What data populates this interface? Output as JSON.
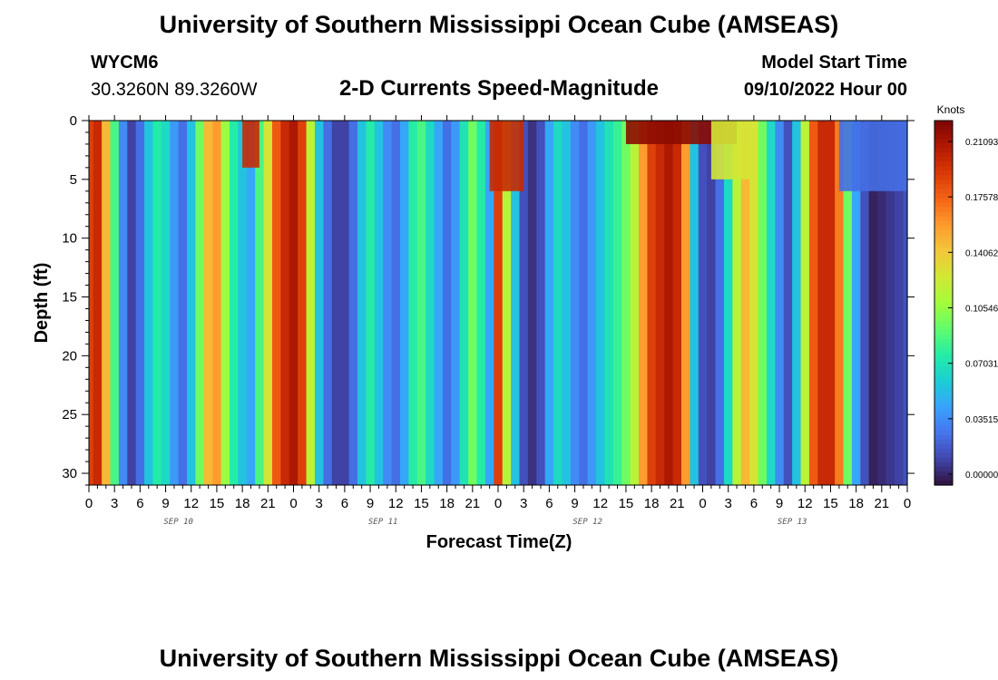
{
  "page": {
    "title": "University of Southern Mississippi Ocean Cube (AMSEAS)",
    "footer_title": "University of Southern Mississippi Ocean Cube (AMSEAS)",
    "station_id": "WYCM6",
    "station_coords": "30.3260N  89.3260W",
    "model_start_label": "Model Start Time",
    "model_start_value": "09/10/2022 Hour 00"
  },
  "chart_data": {
    "type": "heatmap",
    "title": "2-D Currents Speed-Magnitude",
    "xlabel": "Forecast Time(Z)",
    "ylabel": "Depth (ft)",
    "x_tick_labels": [
      "0",
      "3",
      "6",
      "9",
      "12",
      "15",
      "18",
      "21",
      "0",
      "3",
      "6",
      "9",
      "12",
      "15",
      "18",
      "21",
      "0",
      "3",
      "6",
      "9",
      "12",
      "15",
      "18",
      "21",
      "0",
      "3",
      "6",
      "9",
      "12",
      "15",
      "18",
      "21",
      "0"
    ],
    "date_labels": [
      "SEP 10",
      "SEP 11",
      "SEP 12",
      "SEP 13"
    ],
    "y_ticks": [
      0,
      5,
      10,
      15,
      20,
      25,
      30
    ],
    "ylim": [
      0,
      31
    ],
    "x_range_hours": [
      0,
      96
    ],
    "colorbar": {
      "title": "Knots",
      "tick_labels": [
        "0.21093",
        "0.17578",
        "0.14062",
        "0.10546",
        "0.07031",
        "0.03515",
        "0.00000"
      ],
      "tick_values": [
        0.21093,
        0.17578,
        0.14062,
        0.10546,
        0.07031,
        0.03515,
        0.0
      ],
      "vmin": 0.0,
      "vmax": 0.225,
      "colors": [
        "#30123b",
        "#4145ab",
        "#4675ed",
        "#39a2fc",
        "#1bcfd4",
        "#24eca6",
        "#61fc6c",
        "#a4fc3b",
        "#d1e834",
        "#f3c63a",
        "#fe9b2d",
        "#f36315",
        "#d93806",
        "#b11901",
        "#7a0402"
      ]
    },
    "speed_profile_hours": [
      0,
      1,
      2,
      3,
      4,
      5,
      6,
      7,
      8,
      9,
      10,
      11,
      12,
      13,
      14,
      15,
      16,
      17,
      18,
      19,
      20,
      21,
      22,
      23,
      24,
      25,
      26,
      27,
      28,
      29,
      30,
      31,
      32,
      33,
      34,
      35,
      36,
      37,
      38,
      39,
      40,
      41,
      42,
      43,
      44,
      45,
      46,
      47,
      48,
      49,
      50,
      51,
      52,
      53,
      54,
      55,
      56,
      57,
      58,
      59,
      60,
      61,
      62,
      63,
      64,
      65,
      66,
      67,
      68,
      69,
      70,
      71,
      72,
      73,
      74,
      75,
      76,
      77,
      78,
      79,
      80,
      81,
      82,
      83,
      84,
      85,
      86,
      87,
      88,
      89,
      90,
      91,
      92,
      93,
      94,
      95,
      96
    ],
    "speed_profile_knots": [
      0.19,
      0.2,
      0.15,
      0.09,
      0.04,
      0.015,
      0.03,
      0.06,
      0.08,
      0.07,
      0.045,
      0.03,
      0.06,
      0.1,
      0.15,
      0.16,
      0.11,
      0.08,
      0.06,
      0.05,
      0.09,
      0.13,
      0.18,
      0.2,
      0.21,
      0.19,
      0.12,
      0.06,
      0.03,
      0.015,
      0.015,
      0.03,
      0.06,
      0.08,
      0.06,
      0.04,
      0.03,
      0.05,
      0.08,
      0.09,
      0.07,
      0.05,
      0.03,
      0.045,
      0.075,
      0.1,
      0.08,
      0.05,
      0.19,
      0.12,
      0.06,
      0.02,
      0.01,
      0.02,
      0.05,
      0.07,
      0.06,
      0.04,
      0.03,
      0.045,
      0.06,
      0.075,
      0.085,
      0.1,
      0.12,
      0.16,
      0.19,
      0.2,
      0.21,
      0.2,
      0.16,
      0.06,
      0.02,
      0.015,
      0.03,
      0.07,
      0.12,
      0.15,
      0.13,
      0.1,
      0.07,
      0.04,
      0.02,
      0.06,
      0.12,
      0.18,
      0.2,
      0.2,
      0.17,
      0.1,
      0.05,
      0.02,
      0.005,
      0.008,
      0.012,
      0.015,
      0.02
    ],
    "surface_features": [
      {
        "hour_start": 18,
        "hour_end": 20,
        "depth_max_ft": 4,
        "speed_knots": 0.2
      },
      {
        "hour_start": 47,
        "hour_end": 51,
        "depth_max_ft": 6,
        "speed_knots": 0.2
      },
      {
        "hour_start": 63,
        "hour_end": 76,
        "depth_max_ft": 2,
        "speed_knots": 0.22
      },
      {
        "hour_start": 73,
        "hour_end": 78,
        "depth_max_ft": 5,
        "speed_knots": 0.13
      },
      {
        "hour_start": 88,
        "hour_end": 96,
        "depth_max_ft": 6,
        "speed_knots": 0.03
      }
    ]
  }
}
